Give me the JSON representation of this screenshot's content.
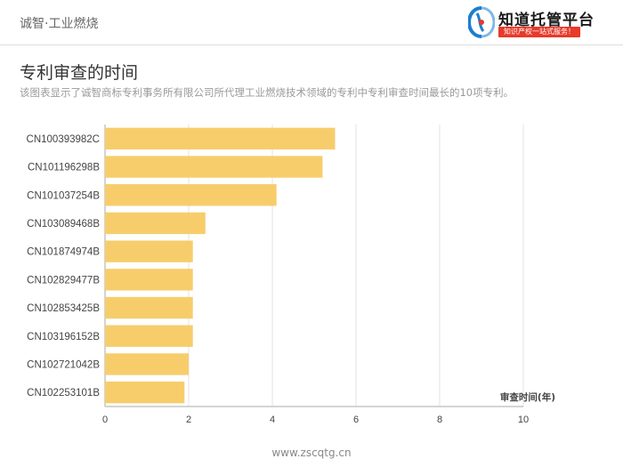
{
  "header": {
    "brand": "诚智·工业燃烧",
    "logo_text": "知道托管平台",
    "logo_tagline": "知识产权一站式服务！"
  },
  "title": "专利审查的时间",
  "subtitle": "该图表显示了诚智商标专利事务所有限公司所代理工业燃烧技术领域的专利中专利审查时间最长的10项专利。",
  "footer": "www.zscqtg.cn",
  "colors": {
    "bar": "#f7cd6c",
    "grid": "#e3e3e3",
    "axis": "#aaaaaa",
    "logo_blue": "#1a7fd0",
    "logo_red": "#e8392a"
  },
  "chart_data": {
    "type": "bar",
    "orientation": "horizontal",
    "categories": [
      "CN100393982C",
      "CN101196298B",
      "CN101037254B",
      "CN103089468B",
      "CN101874974B",
      "CN102829477B",
      "CN102853425B",
      "CN103196152B",
      "CN102721042B",
      "CN102253101B"
    ],
    "values": [
      5.5,
      5.2,
      4.1,
      2.4,
      2.1,
      2.1,
      2.1,
      2.1,
      2.0,
      1.9
    ],
    "xlabel": "审查时间(年)",
    "xlim": [
      0,
      10
    ],
    "xticks": [
      0,
      2,
      4,
      6,
      8,
      10
    ],
    "grid": true
  }
}
